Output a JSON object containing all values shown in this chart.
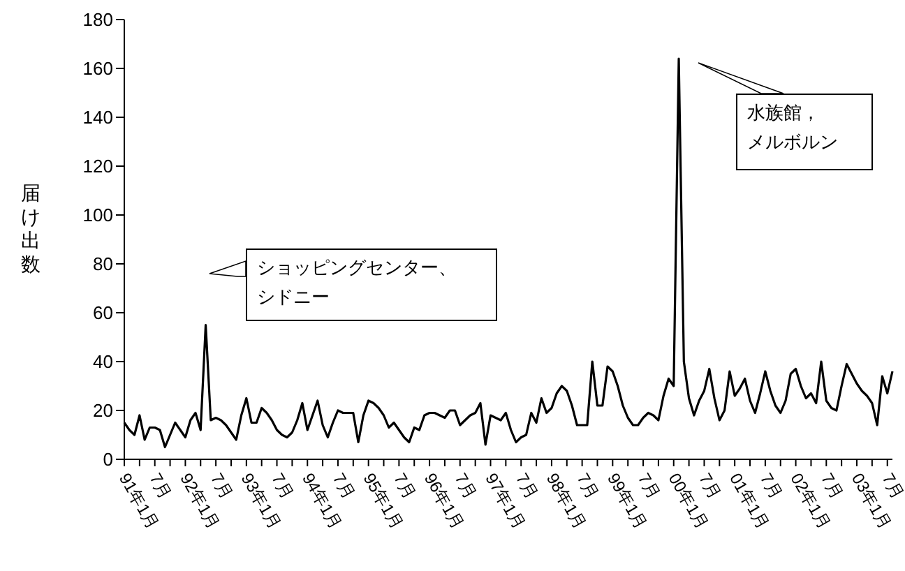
{
  "chart_data": {
    "type": "line",
    "ylabel": "届け出数",
    "categories": [
      "91年1月",
      null,
      null,
      null,
      null,
      null,
      "7月",
      null,
      null,
      null,
      null,
      null,
      "92年1月",
      null,
      null,
      null,
      null,
      null,
      "7月",
      null,
      null,
      null,
      null,
      null,
      "93年1月",
      null,
      null,
      null,
      null,
      null,
      "7月",
      null,
      null,
      null,
      null,
      null,
      "94年1月",
      null,
      null,
      null,
      null,
      null,
      "7月",
      null,
      null,
      null,
      null,
      null,
      "95年1月",
      null,
      null,
      null,
      null,
      null,
      "7月",
      null,
      null,
      null,
      null,
      null,
      "96年1月",
      null,
      null,
      null,
      null,
      null,
      "7月",
      null,
      null,
      null,
      null,
      null,
      "97年1月",
      null,
      null,
      null,
      null,
      null,
      "7月",
      null,
      null,
      null,
      null,
      null,
      "98年1月",
      null,
      null,
      null,
      null,
      null,
      "7月",
      null,
      null,
      null,
      null,
      null,
      "99年1月",
      null,
      null,
      null,
      null,
      null,
      "7月",
      null,
      null,
      null,
      null,
      null,
      "00年1月",
      null,
      null,
      null,
      null,
      null,
      "7月",
      null,
      null,
      null,
      null,
      null,
      "01年1月",
      null,
      null,
      null,
      null,
      null,
      "7月",
      null,
      null,
      null,
      null,
      null,
      "02年1月",
      null,
      null,
      null,
      null,
      null,
      "7月",
      null,
      null,
      null,
      null,
      null,
      "03年1月",
      null,
      null,
      null,
      null,
      null,
      "7月",
      null
    ],
    "series": [
      {
        "color": "#000000",
        "values": [
          15,
          12,
          10,
          18,
          8,
          13,
          13,
          12,
          5,
          10,
          15,
          12,
          9,
          16,
          19,
          12,
          55,
          16,
          17,
          16,
          14,
          11,
          8,
          18,
          25,
          15,
          15,
          21,
          19,
          16,
          12,
          10,
          9,
          11,
          16,
          23,
          12,
          18,
          24,
          14,
          9,
          15,
          20,
          19,
          19,
          19,
          7,
          18,
          24,
          23,
          21,
          18,
          13,
          15,
          12,
          9,
          7,
          13,
          12,
          18,
          19,
          19,
          18,
          17,
          20,
          20,
          14,
          16,
          18,
          19,
          23,
          6,
          18,
          17,
          16,
          19,
          12,
          7,
          9,
          10,
          19,
          15,
          25,
          19,
          21,
          27,
          30,
          28,
          22,
          14,
          14,
          14,
          40,
          22,
          22,
          38,
          36,
          30,
          22,
          17,
          14,
          14,
          17,
          19,
          18,
          16,
          26,
          33,
          30,
          164,
          40,
          25,
          18,
          24,
          28,
          37,
          25,
          16,
          20,
          36,
          26,
          29,
          33,
          24,
          19,
          27,
          36,
          28,
          22,
          19,
          24,
          35,
          37,
          30,
          25,
          27,
          23,
          40,
          24,
          21,
          20,
          30,
          39,
          35,
          31,
          28,
          26,
          23,
          14,
          34,
          27,
          36
        ]
      }
    ],
    "ylim": [
      0,
      180
    ],
    "yticks": [
      0,
      20,
      40,
      60,
      80,
      100,
      120,
      140,
      160,
      180
    ],
    "grid": false,
    "legend": false,
    "marker": "none",
    "line_style": "solid",
    "annotations": [
      "ショッピングセンター、シドニー",
      "水族館，メルボルン"
    ]
  }
}
